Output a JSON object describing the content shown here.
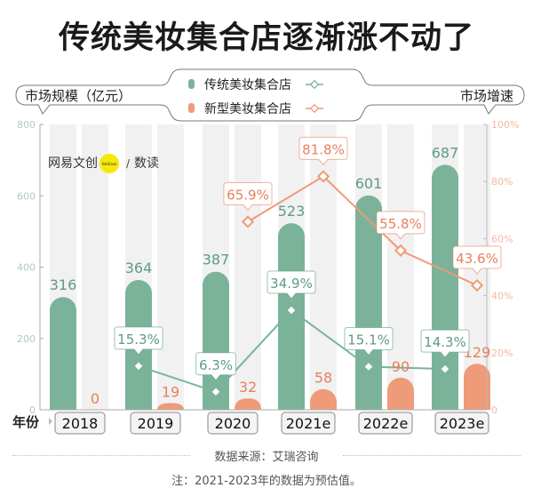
{
  "title": "传统美妆集合店逐渐涨不动了",
  "watermark": {
    "brand": "网易文创",
    "badge": "NetEase",
    "sep": "/",
    "sub": "数读"
  },
  "colors": {
    "green": "#7ab39a",
    "orange": "#ef9a78",
    "green_text": "#5e9c82",
    "orange_text": "#e8805c",
    "bg_col": "#f1f1f1"
  },
  "chart_data": {
    "type": "bar+line",
    "title": "传统美妆集合店逐渐涨不动了",
    "categories": [
      "2018",
      "2019",
      "2020",
      "2021e",
      "2022e",
      "2023e"
    ],
    "xlabel": "年份",
    "ylabel_left": "市场规模（亿元）",
    "ylabel_right": "市场增速",
    "ylim_left": [
      0,
      800
    ],
    "ylim_right": [
      0,
      100
    ],
    "left_ticks": [
      "0",
      "200",
      "400",
      "600",
      "800"
    ],
    "right_ticks": [
      "0",
      "20%",
      "40%",
      "60%",
      "80%",
      "100%"
    ],
    "bar_series": [
      {
        "name": "传统美妆集合店",
        "values": [
          316,
          364,
          387,
          523,
          601,
          687
        ],
        "labels": [
          "316",
          "364",
          "387",
          "523",
          "601",
          "687"
        ]
      },
      {
        "name": "新型美妆集合店",
        "values": [
          0,
          19,
          32,
          58,
          90,
          129
        ],
        "labels": [
          "0",
          "19",
          "32",
          "58",
          "90",
          "129"
        ]
      }
    ],
    "line_series": [
      {
        "name": "传统美妆集合店",
        "x": [
          "2019",
          "2020",
          "2021e",
          "2022e",
          "2023e"
        ],
        "values": [
          15.3,
          6.3,
          34.9,
          15.1,
          14.3
        ],
        "labels": [
          "15.3%",
          "6.3%",
          "34.9%",
          "15.1%",
          "14.3%"
        ]
      },
      {
        "name": "新型美妆集合店",
        "x": [
          "2020",
          "2021e",
          "2022e",
          "2023e"
        ],
        "values": [
          65.9,
          81.8,
          55.8,
          43.6
        ],
        "labels": [
          "65.9%",
          "81.8%",
          "55.8%",
          "43.6%"
        ]
      }
    ],
    "legend": [
      "传统美妆集合店",
      "新型美妆集合店"
    ],
    "legend_position": "top-center"
  },
  "footer": {
    "source": "数据来源：艾瑞咨询",
    "note": "注：2021-2023年的数据为预估值。"
  }
}
